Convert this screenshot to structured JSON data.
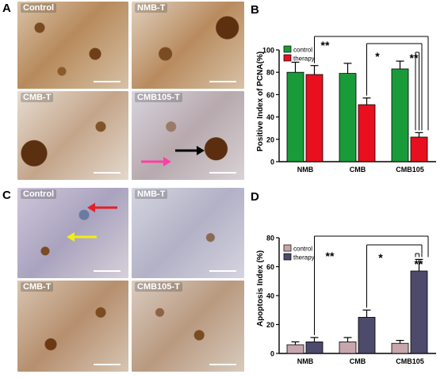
{
  "panel_letters": {
    "A": "A",
    "B": "B",
    "C": "C",
    "D": "D"
  },
  "micrographs_A": {
    "top_left": "Control",
    "top_right": "NMB-T",
    "bottom_left": "CMB-T",
    "bottom_right": "CMB105-T",
    "arrows": [
      {
        "panel": "bottom_right",
        "color": "#ff3fa8",
        "direction": "right"
      },
      {
        "panel": "bottom_right",
        "color": "#000000",
        "direction": "right"
      }
    ]
  },
  "micrographs_C": {
    "top_left": "Control",
    "top_right": "NMB-T",
    "bottom_left": "CMB-T",
    "bottom_right": "CMB105-T",
    "arrows": [
      {
        "panel": "top_left",
        "color": "#e0202a",
        "direction": "left"
      },
      {
        "panel": "top_left",
        "color": "#f2ee10",
        "direction": "right"
      }
    ]
  },
  "chart_data": [
    {
      "panel": "B",
      "type": "bar",
      "title": "",
      "xlabel": "",
      "ylabel": "Positive Index of PCNA(%)",
      "categories": [
        "NMB",
        "CMB",
        "CMB105"
      ],
      "ylim": [
        0,
        100
      ],
      "yticks": [
        "0",
        "20",
        "40",
        "60",
        "80",
        "100"
      ],
      "legend": "top-left",
      "series": [
        {
          "name": "control",
          "color": "#1a9b3a",
          "values": [
            80,
            79,
            83
          ],
          "errors": [
            9,
            9,
            7
          ]
        },
        {
          "name": "therapy",
          "color": "#e8101e",
          "values": [
            78,
            51,
            22
          ],
          "errors": [
            8,
            6,
            4
          ]
        }
      ],
      "significance": [
        "**",
        "*",
        "**"
      ]
    },
    {
      "panel": "D",
      "type": "bar",
      "title": "",
      "xlabel": "",
      "ylabel": "Apoptosis Index (%)",
      "categories": [
        "NMB",
        "CMB",
        "CMB105"
      ],
      "ylim": [
        0,
        80
      ],
      "yticks": [
        "0",
        "20",
        "40",
        "60",
        "80"
      ],
      "legend": "top-left",
      "series": [
        {
          "name": "control",
          "color": "#c7a6ad",
          "values": [
            6,
            8,
            7
          ],
          "errors": [
            2,
            3,
            2
          ]
        },
        {
          "name": "therapy",
          "color": "#4d4a6b",
          "values": [
            8,
            25,
            57
          ],
          "errors": [
            3,
            5,
            8
          ]
        }
      ],
      "significance": [
        "**",
        "*",
        "**"
      ]
    }
  ]
}
